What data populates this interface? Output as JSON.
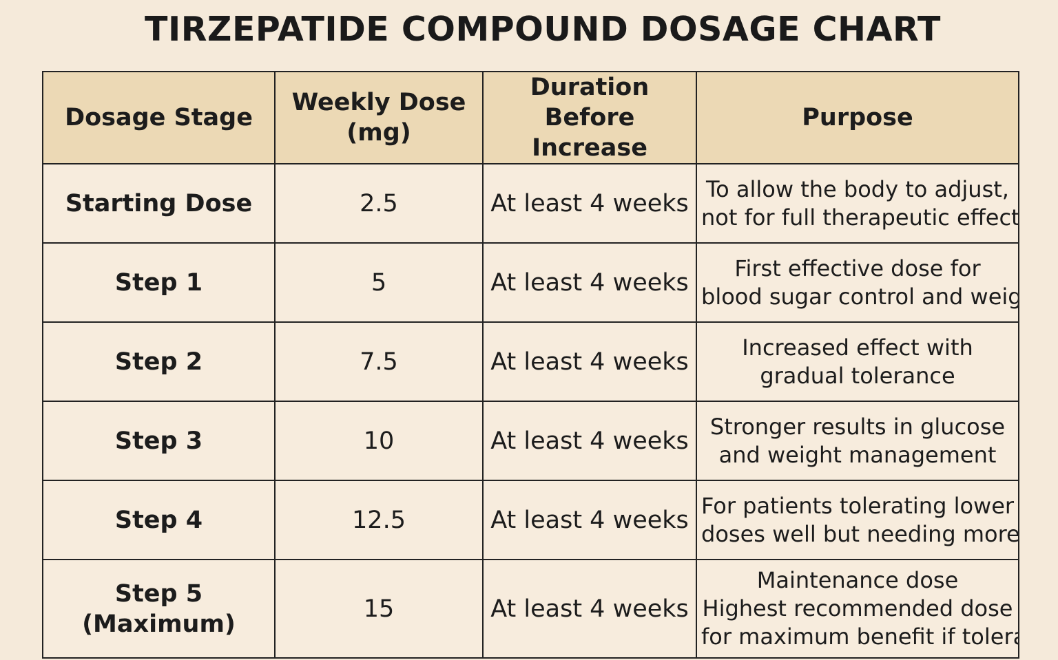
{
  "title": "TIRZEPATIDE COMPOUND DOSAGE CHART",
  "table": {
    "headers": [
      [
        "Dosage Stage"
      ],
      [
        "Weekly Dose",
        "(mg)"
      ],
      [
        "Duration",
        "Before Increase"
      ],
      [
        "Purpose"
      ]
    ],
    "rows": [
      {
        "stage": [
          "Starting Dose"
        ],
        "dose": "2.5",
        "duration": "At least 4 weeks",
        "purpose": [
          "To allow the body to adjust,",
          "not for full therapeutic effect"
        ]
      },
      {
        "stage": [
          "Step 1"
        ],
        "dose": "5",
        "duration": "At least 4 weeks",
        "purpose": [
          "First effective dose for",
          "blood sugar control and weig"
        ]
      },
      {
        "stage": [
          "Step 2"
        ],
        "dose": "7.5",
        "duration": "At least 4 weeks",
        "purpose": [
          "Increased effect with",
          "gradual tolerance"
        ]
      },
      {
        "stage": [
          "Step 3"
        ],
        "dose": "10",
        "duration": "At least 4 weeks",
        "purpose": [
          "Stronger results in glucose",
          "and weight management"
        ]
      },
      {
        "stage": [
          "Step 4"
        ],
        "dose": "12.5",
        "duration": "At least 4 weeks",
        "purpose": [
          "For patients tolerating lower",
          "doses well but needing more"
        ]
      },
      {
        "stage": [
          "Step 5",
          "(Maximum)"
        ],
        "dose": "15",
        "duration": "At least 4 weeks",
        "purpose": [
          "Maintenance dose",
          "Highest recommended dose",
          "for maximum benefit if tolera"
        ]
      }
    ]
  },
  "colors": {
    "background": "#f5eada",
    "header_fill": "#ecd9b5",
    "cell_fill": "#f7ecdd",
    "border": "#222222",
    "text": "#1c1c1c"
  }
}
